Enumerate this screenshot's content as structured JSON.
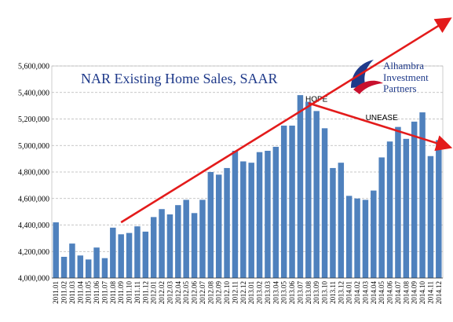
{
  "chart_data": {
    "type": "bar",
    "title": "NAR Existing Home Sales, SAAR",
    "xlabel": "",
    "ylabel": "",
    "ylim": [
      4000000,
      5600000
    ],
    "yticks": [
      "4,000,000",
      "4,200,000",
      "4,400,000",
      "4,600,000",
      "4,800,000",
      "5,000,000",
      "5,200,000",
      "5,400,000",
      "5,600,000"
    ],
    "grid": true,
    "categories": [
      "2011.01",
      "2011.02",
      "2011.03",
      "2011.04",
      "2011.05",
      "2011.06",
      "2011.07",
      "2011.08",
      "2011.09",
      "2011.10",
      "2011.11",
      "2011.12",
      "2012.01",
      "2012.02",
      "2012.03",
      "2012.04",
      "2012.05",
      "2012.06",
      "2012.07",
      "2012.08",
      "2012.09",
      "2012.10",
      "2012.11",
      "2012.12",
      "2013.01",
      "2013.02",
      "2013.03",
      "2013.04",
      "2013.05",
      "2013.06",
      "2013.07",
      "2013.08",
      "2013.09",
      "2013.10",
      "2013.11",
      "2013.12",
      "2014.01",
      "2014.02",
      "2014.03",
      "2014.04",
      "2014.05",
      "2014.06",
      "2014.07",
      "2014.08",
      "2014.09",
      "2014.10",
      "2014.11",
      "2014.12"
    ],
    "values": [
      4420000,
      4160000,
      4260000,
      4170000,
      4140000,
      4230000,
      4150000,
      4380000,
      4330000,
      4340000,
      4390000,
      4350000,
      4460000,
      4520000,
      4480000,
      4550000,
      4590000,
      4490000,
      4590000,
      4800000,
      4780000,
      4830000,
      4960000,
      4880000,
      4870000,
      4950000,
      4960000,
      4990000,
      5150000,
      5150000,
      5380000,
      5330000,
      5260000,
      5130000,
      4830000,
      4870000,
      4620000,
      4600000,
      4590000,
      4660000,
      4910000,
      5030000,
      5140000,
      5050000,
      5180000,
      5250000,
      4920000,
      5040000
    ],
    "color": "#4f81bd",
    "annotations": [
      {
        "text": "HOPE",
        "x": "2013.09",
        "y": 5330000
      },
      {
        "text": "UNEASE",
        "x": "2014.05",
        "y": 5190000
      }
    ],
    "trend_lines": [
      {
        "color": "#e31b1b",
        "from": {
          "x": "2011.09",
          "y": 4420000
        },
        "to": {
          "x": "2014.12",
          "y": 5950000
        }
      },
      {
        "color": "#e31b1b",
        "from": {
          "x": "2013.08",
          "y": 5320000
        },
        "to": {
          "x": "2014.12",
          "y": 4990000
        }
      }
    ]
  },
  "logo": {
    "line1": "Alhambra",
    "line2": "Investment",
    "line3": "Partners",
    "icon": "alhambra-swoosh-icon",
    "colors": {
      "navy": "#1f3a8a",
      "red": "#c8102e"
    }
  }
}
